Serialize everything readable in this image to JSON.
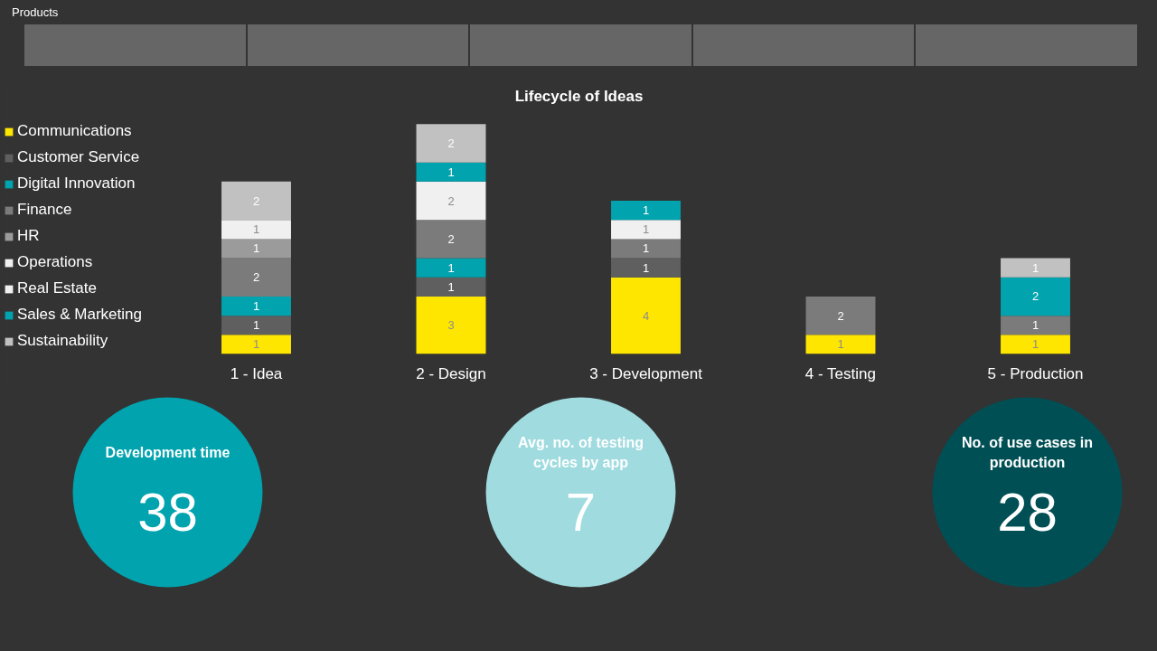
{
  "chart_data": [
    {
      "type": "other",
      "title": "Products",
      "categories": [
        null,
        null,
        null,
        null,
        null
      ]
    },
    {
      "type": "bar",
      "title": "Lifecycle of Ideas",
      "stacked": true,
      "data_labels": true,
      "legend": "left",
      "tick_labels": "x",
      "categories": [
        "1 - Idea",
        "2 - Design",
        "3 - Development",
        "4 - Testing",
        "5 - Production"
      ],
      "series": [
        {
          "name": "Communications",
          "color": "#ffe600",
          "values": [
            1,
            3,
            4,
            1,
            1
          ]
        },
        {
          "name": "Customer Service",
          "color": "#5f5f5f",
          "values": [
            1,
            1,
            1,
            null,
            null
          ]
        },
        {
          "name": "Digital Innovation",
          "color": "#00a3ae",
          "values": [
            1,
            1,
            null,
            null,
            null
          ]
        },
        {
          "name": "Finance",
          "color": "#7b7b7b",
          "values": [
            2,
            2,
            1,
            2,
            1
          ]
        },
        {
          "name": "HR",
          "color": "#9b9b9b",
          "values": [
            1,
            null,
            null,
            null,
            null
          ]
        },
        {
          "name": "Operations",
          "color": "#f0f0f0",
          "values": [
            1,
            2,
            null,
            null,
            null
          ]
        },
        {
          "name": "Real Estate",
          "color": "#f0f0f0",
          "values": [
            null,
            null,
            1,
            null,
            null
          ]
        },
        {
          "name": "Sales & Marketing",
          "color": "#00a3ae",
          "values": [
            null,
            1,
            1,
            null,
            2
          ]
        },
        {
          "name": "Sustainability",
          "color": "#c1c1c1",
          "values": [
            2,
            2,
            null,
            null,
            1
          ]
        }
      ]
    },
    {
      "type": "other",
      "categories": [
        "Development time",
        "Avg. no. of testing cycles by app",
        "No. of use cases in production"
      ],
      "values": [
        38,
        7,
        28
      ],
      "colors": [
        "#00a3ae",
        "#9fdbdf",
        "#004f55"
      ],
      "data_labels": true
    }
  ]
}
